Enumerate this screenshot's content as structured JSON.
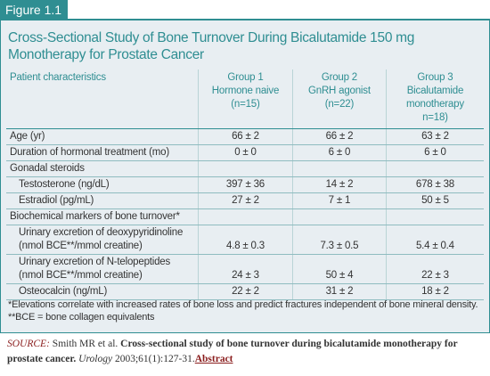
{
  "figure_label": "Figure 1.1",
  "title_lines": [
    "Cross-Sectional Study of Bone Turnover During Bicalutamide 150 mg",
    "Monotherapy for Prostate Cancer"
  ],
  "table": {
    "columns": [
      [
        "Patient characteristics"
      ],
      [
        "Group 1",
        "Hormone naive",
        "(n=15)"
      ],
      [
        "Group 2",
        "GnRH agonist",
        "(n=22)"
      ],
      [
        "Group 3",
        "Bicalutamide",
        "monotherapy",
        "n=18)"
      ]
    ],
    "blocks": [
      {
        "label": [
          "Age (yr)"
        ],
        "cells": [
          "66 ± 2",
          "66 ± 2",
          "63 ± 2"
        ]
      },
      {
        "label": [
          "Duration of hormonal treatment (mo)"
        ],
        "cells": [
          "0 ± 0",
          "6 ± 0",
          "6 ± 0"
        ]
      },
      {
        "heading": "Gonadal steroids",
        "rows": [
          {
            "label": [
              "Testosterone (ng/dL)"
            ],
            "cells": [
              "397 ± 36",
              "14 ± 2",
              "678 ± 38"
            ]
          },
          {
            "label": [
              "Estradiol (pg/mL)"
            ],
            "cells": [
              "27 ± 2",
              "7 ± 1",
              "50 ± 5"
            ]
          }
        ]
      },
      {
        "heading": "Biochemical markers of bone turnover*",
        "rows": [
          {
            "label": [
              "Urinary excretion of deoxypyridinoline",
              "(nmol BCE**/mmol creatine)"
            ],
            "cells": [
              "4.8 ± 0.3",
              "7.3 ± 0.5",
              "5.4 ± 0.4"
            ]
          },
          {
            "label": [
              "Urinary excretion of N-telopeptides",
              "(nmol BCE**/mmol creatine)"
            ],
            "cells": [
              "24 ± 3",
              "50 ± 4",
              "22 ± 3"
            ]
          },
          {
            "label": [
              "Osteocalcin (ng/mL)"
            ],
            "cells": [
              "22 ± 2",
              "31 ± 2",
              "18 ± 2"
            ]
          }
        ]
      }
    ]
  },
  "footnotes": [
    "*Elevations correlate with increased rates of bone loss and predict fractures independent of bone mineral density.",
    "**BCE = bone collagen equivalents"
  ],
  "source": {
    "label": "SOURCE:",
    "authors": "Smith MR et al.",
    "article": "Cross-sectional study of bone turnover during bicalutamide monotherapy for prostate cancer.",
    "journal": "Urology",
    "citation": "2003;61(1):127-31.",
    "link": "Abstract"
  }
}
